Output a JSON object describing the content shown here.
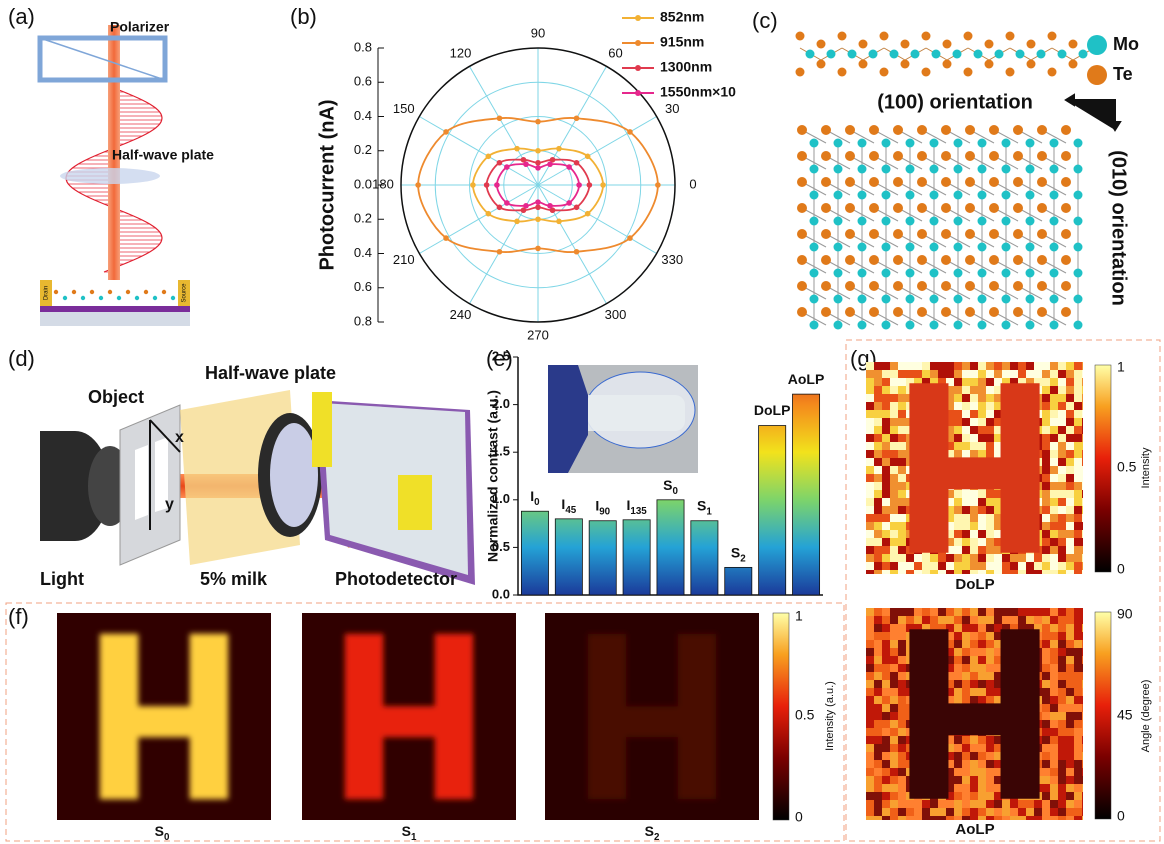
{
  "panel_labels": [
    "(a)",
    "(b)",
    "(c)",
    "(d)",
    "(e)",
    "(f)",
    "(g)"
  ],
  "panel_a": {
    "polarizer": "Polarizer",
    "half_wave_plate": "Half-wave plate",
    "drain": "Drain",
    "source": "Source"
  },
  "panel_c": {
    "legend": [
      "Mo",
      "Te"
    ],
    "orientation_100": "(100) orientation",
    "orientation_010": "(010) orientation"
  },
  "panel_d": {
    "object": "Object",
    "half_wave_plate": "Half-wave plate",
    "x": "x",
    "y": "y",
    "light": "Light",
    "medium": "5% milk",
    "detector": "Photodetector"
  },
  "panel_f": {
    "images": [
      "S0",
      "S1",
      "S2"
    ],
    "colorbar": {
      "ticks": [
        "1",
        "0.5",
        "0"
      ],
      "label": "Intensity (a.u.)"
    }
  },
  "panel_g": {
    "images": [
      "DoLP",
      "AoLP"
    ],
    "colorbars": [
      {
        "ticks": [
          "1",
          "0.5",
          "0"
        ],
        "label": "Intensity"
      },
      {
        "ticks": [
          "90",
          "45",
          "0"
        ],
        "label": "Angle (degree)"
      }
    ]
  },
  "chart_data": [
    {
      "type": "polar",
      "ylabel": "Photocurrent (nA)",
      "x": [
        0,
        30,
        60,
        90,
        120,
        150,
        180,
        210,
        240,
        270,
        300,
        330
      ],
      "xticks": [
        0,
        30,
        60,
        90,
        120,
        150,
        180,
        210,
        240,
        270,
        300,
        330
      ],
      "ylim": [
        0,
        0.8
      ],
      "yticks": [
        {
          "value": 0,
          "label": "0.0"
        },
        0.2,
        0.4,
        0.6,
        0.8
      ],
      "series": [
        {
          "name": "852nm",
          "color": "#f2b134",
          "values": [
            0.38,
            0.335,
            0.245,
            0.2,
            0.245,
            0.335,
            0.38,
            0.335,
            0.245,
            0.2,
            0.245,
            0.335
          ]
        },
        {
          "name": "915nm",
          "color": "#ee8a2e",
          "values": [
            0.7,
            0.62,
            0.45,
            0.37,
            0.45,
            0.62,
            0.7,
            0.62,
            0.45,
            0.37,
            0.45,
            0.62
          ]
        },
        {
          "name": "1300nm",
          "color": "#e03a4e",
          "values": [
            0.3,
            0.26,
            0.17,
            0.13,
            0.17,
            0.26,
            0.3,
            0.26,
            0.17,
            0.13,
            0.17,
            0.26
          ]
        },
        {
          "name": "1550nm×10",
          "color": "#e6278d",
          "values": [
            0.24,
            0.21,
            0.14,
            0.1,
            0.14,
            0.21,
            0.24,
            0.21,
            0.14,
            0.1,
            0.14,
            0.21
          ]
        }
      ]
    },
    {
      "type": "bar",
      "ylabel": "Normalized contrast (a.u.)",
      "categories": [
        "I0",
        "I45",
        "I90",
        "I135",
        "S0",
        "S1",
        "S2",
        "DoLP",
        "AoLP"
      ],
      "values": [
        0.88,
        0.8,
        0.78,
        0.79,
        1.0,
        0.78,
        0.29,
        1.78,
        2.11
      ],
      "colormap": [
        "#1b3a9a",
        "#24a2d6",
        "#7dd46a",
        "#f2e21c",
        "#f48a1c",
        "#d4261e"
      ],
      "ylim": [
        0,
        2.5
      ],
      "yticks": [
        {
          "value": 0,
          "label": "0.0"
        },
        0.5,
        {
          "value": 1,
          "label": "1.0"
        },
        1.5,
        {
          "value": 2,
          "label": "2.0"
        },
        2.5
      ]
    }
  ]
}
